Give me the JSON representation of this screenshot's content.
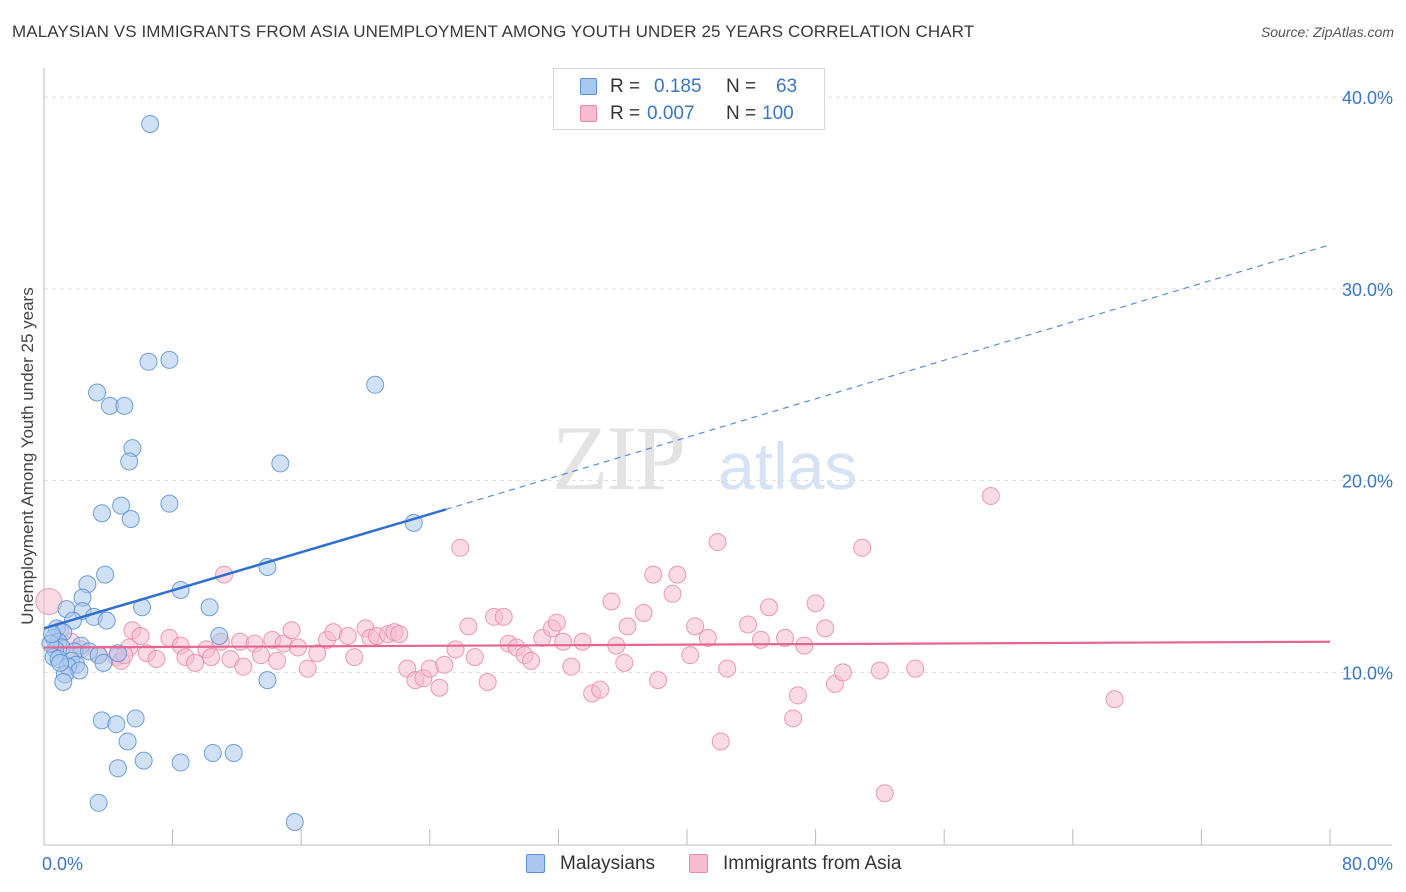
{
  "title": "MALAYSIAN VS IMMIGRANTS FROM ASIA UNEMPLOYMENT AMONG YOUTH UNDER 25 YEARS CORRELATION CHART",
  "source": "Source: ZipAtlas.com",
  "watermark": {
    "zip": "ZIP",
    "atlas": "atlas"
  },
  "colors": {
    "blue_fill": "#aac8ee",
    "blue_stroke": "#5b8fd6",
    "blue_line": "#2f6fcf",
    "pink_fill": "#f6bccf",
    "pink_stroke": "#e98aa8",
    "pink_line": "#e5668f",
    "axis_label": "#3a76c4",
    "grid": "#dddddd"
  },
  "legend": {
    "series1": {
      "r_label": "R =",
      "r_value": "0.185",
      "n_label": "N =",
      "n_value": "63"
    },
    "series2": {
      "r_label": "R =",
      "r_value": "0.007",
      "n_label": "N =",
      "n_value": "100"
    }
  },
  "bottom_legend": {
    "series1": "Malaysians",
    "series2": "Immigrants from Asia"
  },
  "chart_data": {
    "type": "scatter",
    "xlabel": "",
    "ylabel": "Unemployment Among Youth under 25 years",
    "xlim": [
      0,
      80
    ],
    "ylim": [
      1.0,
      41.0
    ],
    "x_tick_labels": [
      {
        "value": 0,
        "label": "0.0%"
      },
      {
        "value": 80,
        "label": "80.0%"
      }
    ],
    "y_tick_labels": [
      {
        "value": 10,
        "label": "10.0%"
      },
      {
        "value": 20,
        "label": "20.0%"
      },
      {
        "value": 30,
        "label": "30.0%"
      },
      {
        "value": 40,
        "label": "40.0%"
      }
    ],
    "x_minor_ticks": [
      0,
      8,
      16,
      24,
      32,
      40,
      48,
      56,
      64,
      72,
      80
    ],
    "series": [
      {
        "name": "Malaysians",
        "r": 0.185,
        "n": 63,
        "trend": {
          "x0": 0,
          "y0": 12.3,
          "x1": 25,
          "y1": 18.5,
          "dashed_to_x": 80,
          "dashed_to_y": 32.3
        },
        "points": [
          [
            6.6,
            38.6
          ],
          [
            7.8,
            26.3
          ],
          [
            6.5,
            26.2
          ],
          [
            20.6,
            25.0
          ],
          [
            3.3,
            24.6
          ],
          [
            4.1,
            23.9
          ],
          [
            5.0,
            23.9
          ],
          [
            5.5,
            21.7
          ],
          [
            5.3,
            21.0
          ],
          [
            14.7,
            20.9
          ],
          [
            4.8,
            18.7
          ],
          [
            7.8,
            18.8
          ],
          [
            3.6,
            18.3
          ],
          [
            5.4,
            18.0
          ],
          [
            23.0,
            17.8
          ],
          [
            13.9,
            15.5
          ],
          [
            3.8,
            15.1
          ],
          [
            2.7,
            14.6
          ],
          [
            8.5,
            14.3
          ],
          [
            2.4,
            13.9
          ],
          [
            6.1,
            13.4
          ],
          [
            10.3,
            13.4
          ],
          [
            1.4,
            13.3
          ],
          [
            2.4,
            13.2
          ],
          [
            3.1,
            12.9
          ],
          [
            1.8,
            12.7
          ],
          [
            3.9,
            12.7
          ],
          [
            0.8,
            12.3
          ],
          [
            1.2,
            12.1
          ],
          [
            10.9,
            11.9
          ],
          [
            0.6,
            11.8
          ],
          [
            0.9,
            11.6
          ],
          [
            2.3,
            11.4
          ],
          [
            1.1,
            11.3
          ],
          [
            0.7,
            11.2
          ],
          [
            1.9,
            11.1
          ],
          [
            2.8,
            11.1
          ],
          [
            4.6,
            11.0
          ],
          [
            3.4,
            10.9
          ],
          [
            0.6,
            10.8
          ],
          [
            0.9,
            10.7
          ],
          [
            1.7,
            10.6
          ],
          [
            3.7,
            10.5
          ],
          [
            2.0,
            10.4
          ],
          [
            1.5,
            10.3
          ],
          [
            2.2,
            10.1
          ],
          [
            1.3,
            9.9
          ],
          [
            1.2,
            9.5
          ],
          [
            13.9,
            9.6
          ],
          [
            3.6,
            7.5
          ],
          [
            5.7,
            7.6
          ],
          [
            4.5,
            7.3
          ],
          [
            5.2,
            6.4
          ],
          [
            10.5,
            5.8
          ],
          [
            11.8,
            5.8
          ],
          [
            6.2,
            5.4
          ],
          [
            8.5,
            5.3
          ],
          [
            4.6,
            5.0
          ],
          [
            3.4,
            3.2
          ],
          [
            15.6,
            2.2
          ],
          [
            0.4,
            11.5
          ],
          [
            0.5,
            12.0
          ],
          [
            1.0,
            10.5
          ]
        ]
      },
      {
        "name": "Immigrants from Asia",
        "r": 0.007,
        "n": 100,
        "trend": {
          "x0": 0,
          "y0": 11.3,
          "x1": 80,
          "y1": 11.6
        },
        "points": [
          [
            0.3,
            13.7
          ],
          [
            1.0,
            12.2
          ],
          [
            1.7,
            11.6
          ],
          [
            2.3,
            11.2
          ],
          [
            3.4,
            10.9
          ],
          [
            4.5,
            10.8
          ],
          [
            4.8,
            10.6
          ],
          [
            5.3,
            11.3
          ],
          [
            5.5,
            12.2
          ],
          [
            6.0,
            11.9
          ],
          [
            6.4,
            11.0
          ],
          [
            7.0,
            10.7
          ],
          [
            7.8,
            11.8
          ],
          [
            8.5,
            11.4
          ],
          [
            8.8,
            10.8
          ],
          [
            9.4,
            10.5
          ],
          [
            10.1,
            11.2
          ],
          [
            10.4,
            10.8
          ],
          [
            11.0,
            11.6
          ],
          [
            11.2,
            15.1
          ],
          [
            11.6,
            10.7
          ],
          [
            12.2,
            11.6
          ],
          [
            12.4,
            10.3
          ],
          [
            13.1,
            11.5
          ],
          [
            13.5,
            10.9
          ],
          [
            14.2,
            11.7
          ],
          [
            14.9,
            11.5
          ],
          [
            15.4,
            12.2
          ],
          [
            15.8,
            11.3
          ],
          [
            16.4,
            10.2
          ],
          [
            17.0,
            11.0
          ],
          [
            17.6,
            11.7
          ],
          [
            18.0,
            12.1
          ],
          [
            18.9,
            11.9
          ],
          [
            19.3,
            10.8
          ],
          [
            20.0,
            12.3
          ],
          [
            20.3,
            11.8
          ],
          [
            20.7,
            11.9
          ],
          [
            21.4,
            12.0
          ],
          [
            21.8,
            12.1
          ],
          [
            22.1,
            12.0
          ],
          [
            22.6,
            10.2
          ],
          [
            23.1,
            9.6
          ],
          [
            23.6,
            9.7
          ],
          [
            24.0,
            10.2
          ],
          [
            24.6,
            9.2
          ],
          [
            24.9,
            10.4
          ],
          [
            25.6,
            11.2
          ],
          [
            25.9,
            16.5
          ],
          [
            26.4,
            12.4
          ],
          [
            26.8,
            10.8
          ],
          [
            27.6,
            9.5
          ],
          [
            28.0,
            12.9
          ],
          [
            28.6,
            12.9
          ],
          [
            28.9,
            11.5
          ],
          [
            29.4,
            11.3
          ],
          [
            29.9,
            10.9
          ],
          [
            30.3,
            10.6
          ],
          [
            31.0,
            11.8
          ],
          [
            31.6,
            12.3
          ],
          [
            31.9,
            12.6
          ],
          [
            32.3,
            11.6
          ],
          [
            32.8,
            10.3
          ],
          [
            33.5,
            11.6
          ],
          [
            34.1,
            8.9
          ],
          [
            34.6,
            9.1
          ],
          [
            35.3,
            13.7
          ],
          [
            35.6,
            11.4
          ],
          [
            36.1,
            10.5
          ],
          [
            36.3,
            12.4
          ],
          [
            37.3,
            13.1
          ],
          [
            37.9,
            15.1
          ],
          [
            38.2,
            9.6
          ],
          [
            39.1,
            14.1
          ],
          [
            39.4,
            15.1
          ],
          [
            40.2,
            10.9
          ],
          [
            40.5,
            12.4
          ],
          [
            41.3,
            11.8
          ],
          [
            41.9,
            16.8
          ],
          [
            42.1,
            6.4
          ],
          [
            42.5,
            10.2
          ],
          [
            43.8,
            12.5
          ],
          [
            44.6,
            11.7
          ],
          [
            45.1,
            13.4
          ],
          [
            46.1,
            11.8
          ],
          [
            46.6,
            7.6
          ],
          [
            46.9,
            8.8
          ],
          [
            47.3,
            11.4
          ],
          [
            48.0,
            13.6
          ],
          [
            48.6,
            12.3
          ],
          [
            49.2,
            9.4
          ],
          [
            49.7,
            10.0
          ],
          [
            50.9,
            16.5
          ],
          [
            52.0,
            10.1
          ],
          [
            52.3,
            3.7
          ],
          [
            54.2,
            10.2
          ],
          [
            58.9,
            19.2
          ],
          [
            66.6,
            8.6
          ],
          [
            5.0,
            10.9
          ],
          [
            14.5,
            10.6
          ]
        ]
      }
    ]
  }
}
